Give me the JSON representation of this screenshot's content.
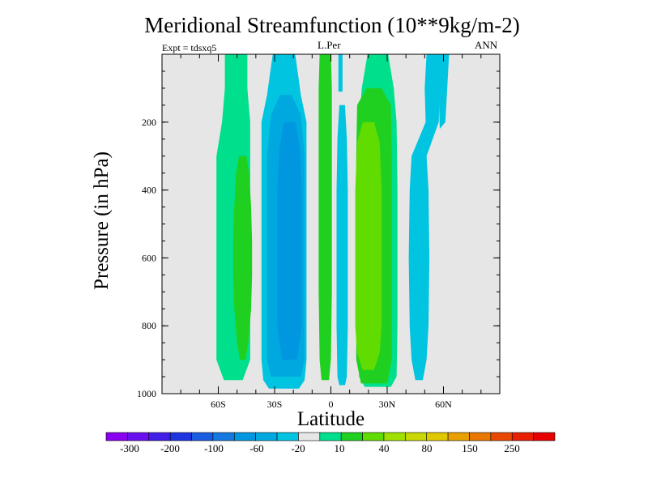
{
  "title": "Meridional Streamfunction (10**9kg/m-2)",
  "left_label": "Expt = tdsxq5",
  "center_label": "L.Per",
  "right_label": "ANN",
  "chart_data": {
    "type": "heatmap",
    "subtype": "filled-contour",
    "title": "Meridional Streamfunction (10**9kg/m-2)",
    "xlabel": "Latitude",
    "ylabel": "Pressure (in hPa)",
    "xlim": [
      -90,
      90
    ],
    "ylim": [
      1000,
      0
    ],
    "xticks": [
      -60,
      -30,
      0,
      30,
      60
    ],
    "xtick_labels": [
      "60S",
      "30S",
      "0",
      "30N",
      "60N"
    ],
    "yticks": [
      200,
      400,
      600,
      800,
      1000
    ],
    "ytick_labels": [
      "200",
      "400",
      "600",
      "800",
      "1000"
    ],
    "colorbar": {
      "labels": [
        "-300",
        "-200",
        "-100",
        "-60",
        "-20",
        "10",
        "40",
        "80",
        "150",
        "250"
      ],
      "colors": [
        "#8A00F0",
        "#6A10F0",
        "#4020E8",
        "#1E34E0",
        "#1A5CE0",
        "#1478E0",
        "#0096E0",
        "#00A8E0",
        "#00C4E0",
        "#E6E6E6",
        "#00E08C",
        "#20D020",
        "#60DC00",
        "#A0E000",
        "#C8D800",
        "#E0C800",
        "#E8A000",
        "#E87800",
        "#E84800",
        "#E82000",
        "#E80000"
      ]
    },
    "regions": [
      {
        "name": "nh-mid-lat-pos-outer",
        "level": "10",
        "color": "#00E08C",
        "center_lat": -52,
        "pmin": 0,
        "pmax": 960
      },
      {
        "name": "nh-mid-lat-pos-core",
        "level": "40",
        "color": "#20D020",
        "center_lat": -47,
        "pmin": 300,
        "pmax": 900
      },
      {
        "name": "sh-hadley-neg-outer",
        "level": "-20",
        "color": "#00C4E0",
        "center_lat": -25,
        "pmin": 0,
        "pmax": 985
      },
      {
        "name": "sh-hadley-neg-mid",
        "level": "-60",
        "color": "#00A8E0",
        "center_lat": -24,
        "pmin": 120,
        "pmax": 950
      },
      {
        "name": "sh-hadley-neg-core",
        "level": "-100",
        "color": "#0096E0",
        "center_lat": -22,
        "pmin": 200,
        "pmax": 900
      },
      {
        "name": "eq-pos-strip",
        "level": "40",
        "color": "#20D020",
        "center_lat": -3,
        "pmin": 0,
        "pmax": 960
      },
      {
        "name": "eq-neg-strip",
        "level": "-20",
        "color": "#00C4E0",
        "center_lat": 6,
        "pmin": 150,
        "pmax": 975
      },
      {
        "name": "nh-hadley-pos-outer",
        "level": "10",
        "color": "#00E08C",
        "center_lat": 25,
        "pmin": 0,
        "pmax": 980
      },
      {
        "name": "nh-hadley-pos-mid",
        "level": "40",
        "color": "#20D020",
        "center_lat": 23,
        "pmin": 100,
        "pmax": 970
      },
      {
        "name": "nh-hadley-pos-core",
        "level": "80",
        "color": "#60DC00",
        "center_lat": 20,
        "pmin": 200,
        "pmax": 930
      },
      {
        "name": "nh-ferrel-neg",
        "level": "-20",
        "color": "#00C4E0",
        "center_lat": 47,
        "pmin": 0,
        "pmax": 960
      }
    ]
  }
}
